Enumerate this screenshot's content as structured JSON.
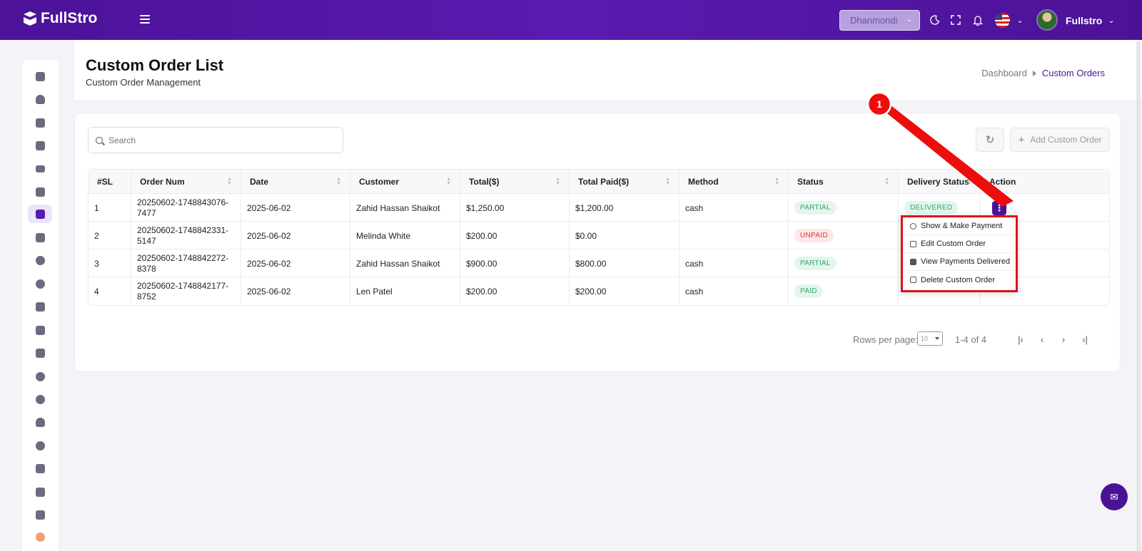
{
  "app": {
    "brand": "FullStro"
  },
  "topbar": {
    "branch": "Dhanmondi",
    "user_name": "Fullstro",
    "icons": [
      "menu-icon",
      "moon-icon",
      "fullscreen-icon",
      "bell-icon",
      "us-flag-icon",
      "chevron-down-icon"
    ]
  },
  "header": {
    "title": "Custom Order List",
    "subtitle": "Custom Order Management",
    "breadcrumb": {
      "home": "Dashboard",
      "current": "Custom Orders"
    }
  },
  "toolbar": {
    "search_placeholder": "Search",
    "add_label": "Add Custom Order"
  },
  "table": {
    "columns": [
      "#SL",
      "Order Num",
      "Date",
      "Customer",
      "Total($)",
      "Total Paid($)",
      "Method",
      "Status",
      "Delivery Status",
      "Action"
    ],
    "rows": [
      {
        "sl": "1",
        "order_num": "20250602-1748843076-7477",
        "date": "2025-06-02",
        "customer": "Zahid Hassan Shaikot",
        "total": "$1,250.00",
        "paid": "$1,200.00",
        "method": "cash",
        "status": "PARTIAL",
        "delivery": "DELIVERED"
      },
      {
        "sl": "2",
        "order_num": "20250602-1748842331-5147",
        "date": "2025-06-02",
        "customer": "Melinda White",
        "total": "$200.00",
        "paid": "$0.00",
        "method": "",
        "status": "UNPAID",
        "delivery": ""
      },
      {
        "sl": "3",
        "order_num": "20250602-1748842272-8378",
        "date": "2025-06-02",
        "customer": "Zahid Hassan Shaikot",
        "total": "$900.00",
        "paid": "$800.00",
        "method": "cash",
        "status": "PARTIAL",
        "delivery": ""
      },
      {
        "sl": "4",
        "order_num": "20250602-1748842177-8752",
        "date": "2025-06-02",
        "customer": "Len Patel",
        "total": "$200.00",
        "paid": "$200.00",
        "method": "cash",
        "status": "PAID",
        "delivery": ""
      }
    ]
  },
  "pagination": {
    "rows_label": "Rows per page:",
    "rows_value": "10",
    "range": "1-4 of 4"
  },
  "action_menu": {
    "items": [
      {
        "label": "Show & Make Payment",
        "icon": "eye-icon"
      },
      {
        "label": "Edit Custom Order",
        "icon": "pencil-icon"
      },
      {
        "label": "View Payments Delivered",
        "icon": "wallet-icon"
      },
      {
        "label": "Delete Custom Order",
        "icon": "trash-icon"
      }
    ]
  },
  "annotation": {
    "number": "1"
  },
  "colors": {
    "primary": "#4b1296",
    "highlight": "#e0101b",
    "success": "#2fa86a",
    "danger": "#d93a3a"
  }
}
